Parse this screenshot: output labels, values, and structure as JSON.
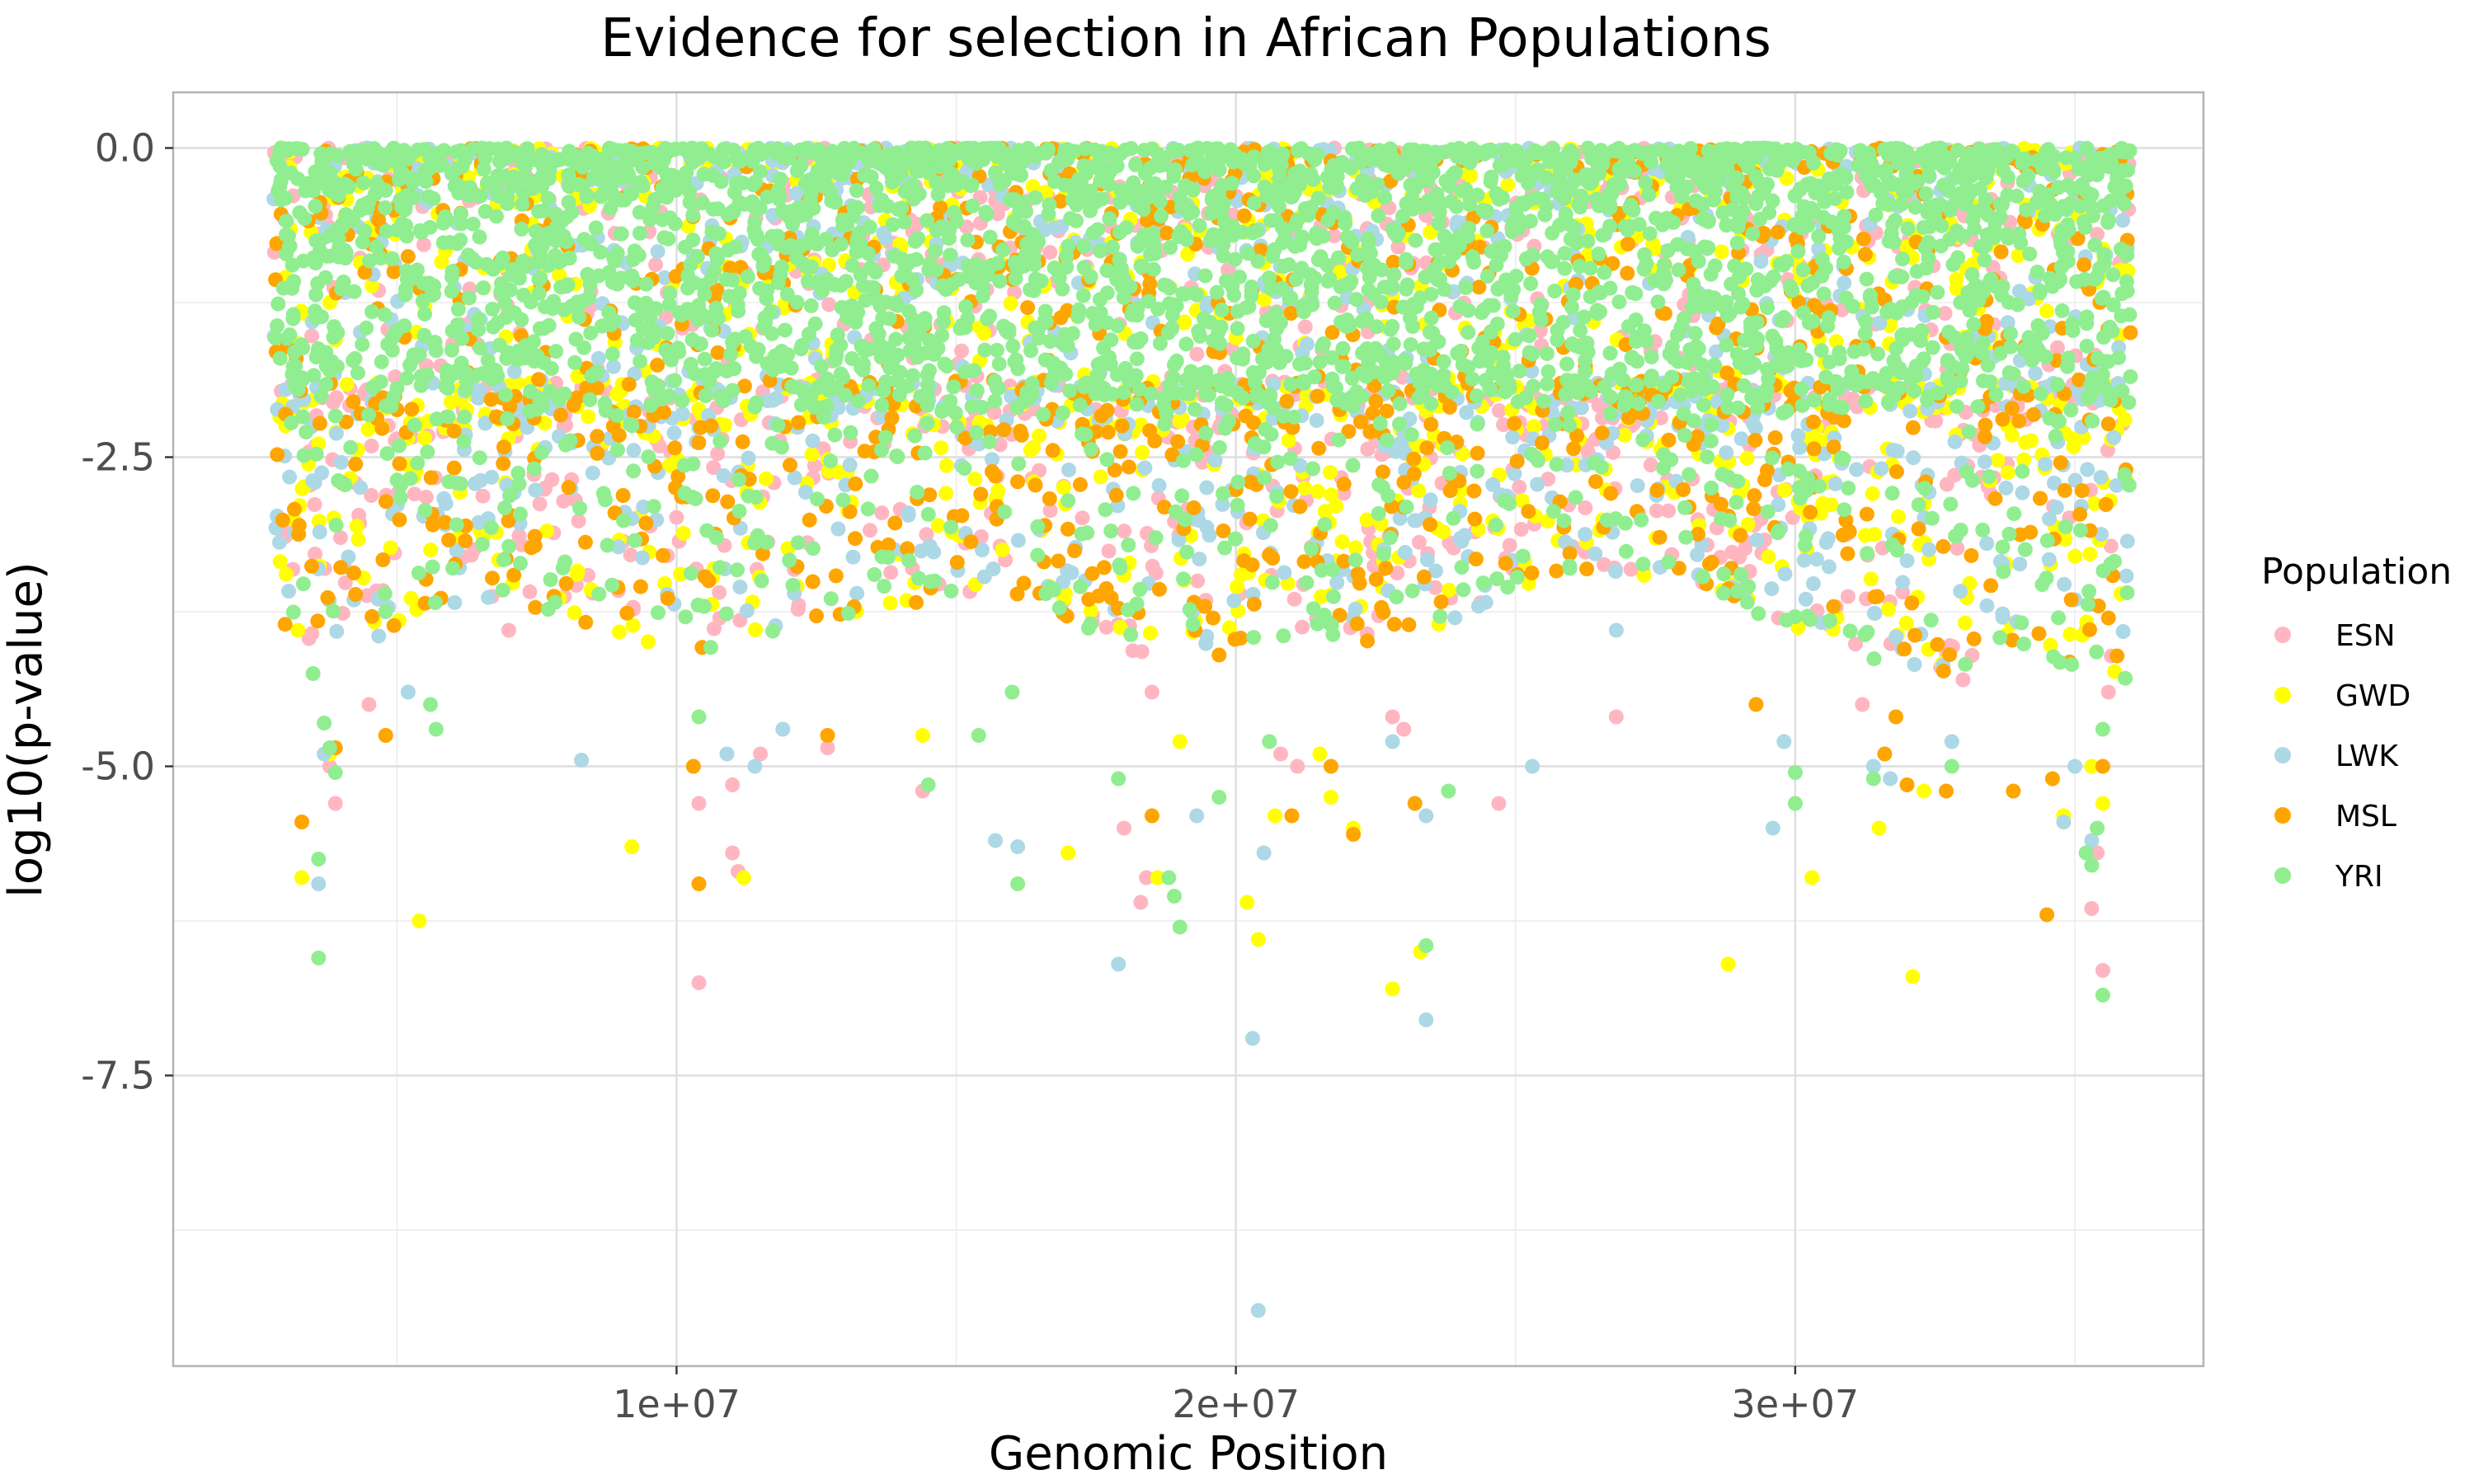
{
  "chart_data": {
    "type": "scatter",
    "title": "Evidence for selection in African Populations",
    "xlabel": "Genomic Position",
    "ylabel": "log10(p-value)",
    "xlim": [
      1000000,
      37300000
    ],
    "ylim": [
      -9.85,
      0.45
    ],
    "x_ticks": [
      10000000,
      20000000,
      30000000
    ],
    "x_tick_labels": [
      "1e+07",
      "2e+07",
      "3e+07"
    ],
    "y_ticks": [
      0,
      -2.5,
      -5,
      -7.5
    ],
    "y_tick_labels": [
      "0.0",
      "-2.5",
      "-5.0",
      "-7.5"
    ],
    "grid": true,
    "legend": {
      "title": "Population",
      "placement": "right"
    },
    "series": [
      {
        "name": "ESN",
        "color": "#FFB6C1",
        "outliers": [
          [
            3900000,
            -5.3
          ],
          [
            3800000,
            -5.0
          ],
          [
            4500000,
            -4.5
          ],
          [
            7000000,
            -3.9
          ],
          [
            8500000,
            -3.6
          ],
          [
            10400000,
            -5.3
          ],
          [
            10400000,
            -6.75
          ],
          [
            11000000,
            -5.7
          ],
          [
            11100000,
            -5.85
          ],
          [
            11000000,
            -5.15
          ],
          [
            11500000,
            -4.9
          ],
          [
            12700000,
            -4.85
          ],
          [
            14400000,
            -5.2
          ],
          [
            18000000,
            -5.5
          ],
          [
            18300000,
            -6.1
          ],
          [
            18400000,
            -5.9
          ],
          [
            18500000,
            -4.4
          ],
          [
            20800000,
            -4.9
          ],
          [
            21100000,
            -5.0
          ],
          [
            22800000,
            -4.6
          ],
          [
            23000000,
            -4.7
          ],
          [
            24700000,
            -5.3
          ],
          [
            26800000,
            -4.6
          ],
          [
            29700000,
            -3.8
          ],
          [
            31200000,
            -4.5
          ],
          [
            32600000,
            -4.2
          ],
          [
            33000000,
            -4.3
          ],
          [
            35300000,
            -6.15
          ],
          [
            35400000,
            -5.7
          ],
          [
            35500000,
            -6.65
          ],
          [
            35600000,
            -4.4
          ],
          [
            35200000,
            -3.9
          ]
        ]
      },
      {
        "name": "GWD",
        "color": "#FFFF00",
        "outliers": [
          [
            3300000,
            -5.9
          ],
          [
            3800000,
            -4.9
          ],
          [
            5400000,
            -6.25
          ],
          [
            9200000,
            -5.65
          ],
          [
            11200000,
            -5.9
          ],
          [
            14400000,
            -4.75
          ],
          [
            17000000,
            -5.7
          ],
          [
            18600000,
            -5.9
          ],
          [
            19000000,
            -4.8
          ],
          [
            20200000,
            -6.1
          ],
          [
            20400000,
            -6.4
          ],
          [
            20700000,
            -5.4
          ],
          [
            21500000,
            -4.9
          ],
          [
            21700000,
            -5.25
          ],
          [
            22100000,
            -5.5
          ],
          [
            22800000,
            -6.8
          ],
          [
            23300000,
            -6.5
          ],
          [
            28800000,
            -6.6
          ],
          [
            30300000,
            -5.9
          ],
          [
            31500000,
            -5.5
          ],
          [
            32100000,
            -6.7
          ],
          [
            32300000,
            -5.2
          ],
          [
            34800000,
            -5.4
          ],
          [
            35300000,
            -5.0
          ],
          [
            35500000,
            -5.3
          ]
        ]
      },
      {
        "name": "LWK",
        "color": "#ADD8E6",
        "outliers": [
          [
            3600000,
            -5.95
          ],
          [
            3700000,
            -4.9
          ],
          [
            5200000,
            -4.4
          ],
          [
            8300000,
            -4.95
          ],
          [
            10900000,
            -4.9
          ],
          [
            11400000,
            -5.0
          ],
          [
            11900000,
            -4.7
          ],
          [
            15700000,
            -5.6
          ],
          [
            16100000,
            -5.65
          ],
          [
            17900000,
            -6.6
          ],
          [
            19300000,
            -5.4
          ],
          [
            20300000,
            -7.2
          ],
          [
            20400000,
            -9.4
          ],
          [
            20500000,
            -5.7
          ],
          [
            22800000,
            -4.8
          ],
          [
            23400000,
            -7.05
          ],
          [
            23400000,
            -5.4
          ],
          [
            25300000,
            -5.0
          ],
          [
            26800000,
            -3.9
          ],
          [
            29600000,
            -5.5
          ],
          [
            29800000,
            -4.8
          ],
          [
            31400000,
            -5.0
          ],
          [
            31700000,
            -5.1
          ],
          [
            32800000,
            -4.8
          ],
          [
            34800000,
            -5.45
          ],
          [
            35000000,
            -5.0
          ],
          [
            35300000,
            -5.6
          ]
        ]
      },
      {
        "name": "MSL",
        "color": "#FFA500",
        "outliers": [
          [
            3300000,
            -5.45
          ],
          [
            3900000,
            -4.85
          ],
          [
            4800000,
            -4.75
          ],
          [
            10400000,
            -5.95
          ],
          [
            10300000,
            -5.0
          ],
          [
            12700000,
            -4.75
          ],
          [
            18500000,
            -5.4
          ],
          [
            19700000,
            -4.1
          ],
          [
            21000000,
            -5.4
          ],
          [
            21700000,
            -5.0
          ],
          [
            22100000,
            -5.55
          ],
          [
            23200000,
            -5.3
          ],
          [
            29300000,
            -4.5
          ],
          [
            31600000,
            -4.9
          ],
          [
            31800000,
            -4.6
          ],
          [
            32000000,
            -5.15
          ],
          [
            32700000,
            -5.2
          ],
          [
            33900000,
            -5.2
          ],
          [
            34600000,
            -5.1
          ],
          [
            34500000,
            -6.2
          ],
          [
            35500000,
            -5.0
          ],
          [
            35600000,
            -3.8
          ]
        ]
      },
      {
        "name": "YRI",
        "color": "#90EE90",
        "outliers": [
          [
            3500000,
            -4.25
          ],
          [
            3600000,
            -5.75
          ],
          [
            3600000,
            -6.55
          ],
          [
            3700000,
            -4.65
          ],
          [
            3800000,
            -4.85
          ],
          [
            3900000,
            -5.05
          ],
          [
            5600000,
            -4.5
          ],
          [
            5700000,
            -4.7
          ],
          [
            10400000,
            -4.6
          ],
          [
            14500000,
            -5.15
          ],
          [
            15400000,
            -4.75
          ],
          [
            16000000,
            -4.4
          ],
          [
            16100000,
            -5.95
          ],
          [
            17900000,
            -5.1
          ],
          [
            18800000,
            -5.9
          ],
          [
            18900000,
            -6.05
          ],
          [
            19000000,
            -6.3
          ],
          [
            19700000,
            -5.25
          ],
          [
            20600000,
            -4.8
          ],
          [
            23400000,
            -6.45
          ],
          [
            23800000,
            -5.2
          ],
          [
            30000000,
            -5.05
          ],
          [
            30000000,
            -5.3
          ],
          [
            31400000,
            -5.1
          ],
          [
            32800000,
            -5.0
          ],
          [
            35200000,
            -5.7
          ],
          [
            35300000,
            -5.8
          ],
          [
            35400000,
            -5.5
          ],
          [
            35500000,
            -4.7
          ],
          [
            35500000,
            -6.85
          ]
        ]
      }
    ]
  }
}
